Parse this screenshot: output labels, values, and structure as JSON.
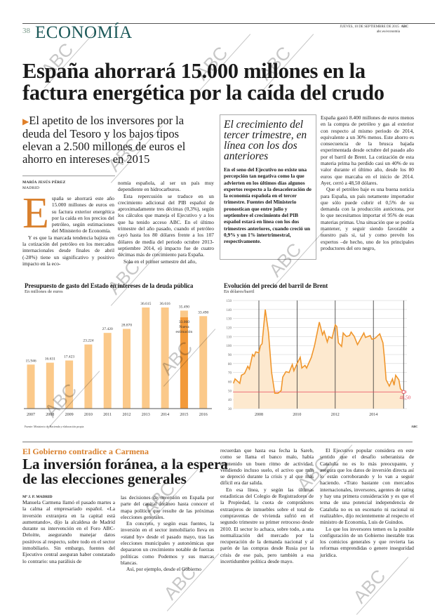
{
  "header": {
    "page_number": "38",
    "section": "ECONOMÍA",
    "date": "JUEVES, 10 DE SEPTIEMBRE DE 2015",
    "brand": "ABC",
    "url": "abc.es/economia"
  },
  "article": {
    "headline": "España ahorrará 15.000 millones en la factura energética por la caída del crudo",
    "subhead": "El apetito de los inversores por la deuda del Tesoro y los bajos tipos elevan a 2.500 millones de euros el ahorro en intereses en 2015",
    "author": "MARÍA JESÚS PÉREZ",
    "location": "MADRID",
    "dropcap": "E",
    "col1": [
      "spaña se ahorrará este año 15.000 millones de euros en su factura exterior energética por la caída en los precios del petróleo, según estimaciones del Ministerio de Economía.",
      "Y es que la marcada tendencia bajista en la cotización del petróleo en los mercados internacionales desde finales de abril (-28%) tiene un significativo y positivo impacto en la eco-"
    ],
    "col2": [
      "nomía española, al ser un país muy dependiente en hidrocarburos.",
      "Esta repercusión se traduce en un crecimiento adicional del PIB español de aproximadamente tres décimas (0,3%), según los cálculos que maneja el Ejecutivo y a los que ha tenido acceso ABC. En el último trimestre del año pasado, cuando el petróleo cayó hasta los 80 dólares frente a los 107 dólares de media del periodo octubre 2013-septiembre 2014, el impacto fue de cuatro décimas más de crecimiento para España.",
      "Solo en el primer semestre del año,"
    ],
    "box": {
      "title": "El crecimiento del tercer trimestre, en línea con los dos anteriores",
      "body": "En el seno del Ejecutivo no existe una percepción tan negativa como la que advierten en los últimos días algunos expertos respecto a la desaceleración de la economía española en el tercer trimestre. Fuentes del Ministerio pronostican que entre julio y septiembre el crecimiento del PIB español estará en línea con los dos trimestres anteriores, cuando creció un 0,9% y un 1% intertrimestral, respectivamente."
    },
    "col4": [
      "España gastó 8.400 millones de euros menos en la compra de petróleo y gas al exterior con respecto al mismo periodo de 2014, equivalente a un 30% menos. Este ahorro es consecuencia de la brusca bajada experimentada desde octubre del pasado año por el barril de Brent. La cotización de esta materia prima ha perdido casi un 40% de su valor durante el último año, desde los 80 euros que marcaba en el inicio de 2014. Ayer, cerró a 48,50 dólares.",
      "Que el petróleo baje es una buena noticia para España, un país netamente importador que sólo puede cubrir el 0,5% de su demanda con la producción autóctona, por lo que necesitamos importar el 95% de esas materias primas. Una situación que se podría mantener, y seguir siendo favorable a nuestro país si, tal y como prevén los expertos –de hecho, uno de los principales productores del oro negro,"
    ]
  },
  "chart_data": [
    {
      "type": "bar",
      "title": "Presupuesto de gasto del Estado en intereses de la deuda pública",
      "subtitle": "En millones de euros",
      "categories": [
        "2007",
        "2008",
        "2009",
        "2010",
        "2011",
        "2012",
        "2013",
        "2014",
        "2015",
        "2016"
      ],
      "values": [
        15946,
        16631,
        17423,
        23224,
        27420,
        28870,
        36615,
        36616,
        35490,
        33490
      ],
      "labels": [
        "15.946",
        "16.631",
        "17.423",
        "23.224",
        "27.420",
        "28.870",
        "36.615",
        "36.616",
        "35.490",
        "33.490"
      ],
      "overlay": {
        "category": "2015",
        "value": 33060,
        "label": "33.060",
        "note": "Nueva estimación"
      },
      "source": "Fuente: Ministerio de Hacienda y elaboración propia",
      "ylim": [
        0,
        40000
      ],
      "colors": {
        "bar": "#fbc98a",
        "overlay": "#f39a3a"
      }
    },
    {
      "type": "area",
      "title": "Evolución del precio del barril de Brent",
      "subtitle": "En dólares/barril",
      "yticks": [
        30,
        40,
        50,
        60,
        70,
        80,
        90,
        100,
        110,
        120,
        130,
        140,
        150
      ],
      "ylim": [
        30,
        150
      ],
      "xticks": [
        "2008",
        "2010",
        "2012",
        "2014"
      ],
      "grid": true,
      "colors": {
        "line": "#f0962c",
        "fill": "#fde9cf",
        "reference": "#e8475a"
      },
      "reference": {
        "value": 48.5,
        "label": "48,50"
      },
      "credit": "ABC",
      "points": [
        [
          "2006-09",
          58
        ],
        [
          "2006-10",
          63
        ],
        [
          "2007-01",
          58
        ],
        [
          "2007-02",
          67
        ],
        [
          "2007-04",
          69
        ],
        [
          "2007-06",
          77
        ],
        [
          "2007-07",
          74
        ],
        [
          "2007-09",
          90
        ],
        [
          "2007-10",
          88
        ],
        [
          "2007-11",
          93
        ],
        [
          "2008-01",
          92
        ],
        [
          "2008-02",
          100
        ],
        [
          "2008-03",
          102
        ],
        [
          "2008-05",
          140
        ],
        [
          "2008-07",
          115
        ],
        [
          "2008-09",
          70
        ],
        [
          "2008-11",
          47
        ],
        [
          "2009-01",
          47
        ],
        [
          "2009-03",
          50
        ],
        [
          "2009-04",
          65
        ],
        [
          "2009-06",
          71
        ],
        [
          "2009-08",
          70
        ],
        [
          "2009-10",
          79
        ],
        [
          "2009-11",
          72
        ],
        [
          "2010-01",
          80
        ],
        [
          "2010-03",
          87
        ],
        [
          "2010-04",
          75
        ],
        [
          "2010-06",
          78
        ],
        [
          "2010-07",
          75
        ],
        [
          "2010-09",
          83
        ],
        [
          "2010-10",
          87
        ],
        [
          "2010-12",
          100
        ],
        [
          "2011-03",
          126
        ],
        [
          "2011-05",
          112
        ],
        [
          "2011-06",
          116
        ],
        [
          "2011-08",
          104
        ],
        [
          "2011-09",
          110
        ],
        [
          "2011-11",
          108
        ],
        [
          "2012-01",
          123
        ],
        [
          "2012-02",
          121
        ],
        [
          "2012-03",
          103
        ],
        [
          "2012-05",
          99
        ],
        [
          "2012-06",
          114
        ],
        [
          "2012-08",
          110
        ],
        [
          "2012-10",
          111
        ],
        [
          "2012-11",
          115
        ],
        [
          "2013-01",
          110
        ],
        [
          "2013-03",
          101
        ],
        [
          "2013-07",
          114
        ],
        [
          "2013-08",
          109
        ],
        [
          "2013-11",
          111
        ],
        [
          "2013-12",
          107
        ],
        [
          "2014-02",
          108
        ],
        [
          "2014-05",
          113
        ],
        [
          "2014-07",
          103
        ],
        [
          "2014-08",
          85
        ],
        [
          "2014-09",
          62
        ],
        [
          "2014-11",
          55
        ],
        [
          "2015-01",
          63
        ],
        [
          "2015-02",
          56
        ],
        [
          "2015-03",
          67
        ],
        [
          "2015-05",
          62
        ],
        [
          "2015-06",
          52
        ],
        [
          "2015-08",
          48.5
        ]
      ]
    }
  ],
  "article2": {
    "kicker": "El Gobierno contradice a Carmena",
    "headline": "La inversión foránea, a la espera de las elecciones generales",
    "byline": "Mª J. P. MADRID",
    "col1": [
      "Manuela Carmena llamó el pasado martes a la calma al empresariado español. «La inversión extranjera en la capital está aumentando», dijo la alcaldesa de Madrid durante su intervención en el Foro ABC-Deloitte, asegurando manejar datos positivos al respecto, sobre todo en el sector inmobiliario. Sin embargo, fuentes del Ejecutivo central aseguran haber constatado lo contrario: una parálisis de"
    ],
    "col2": [
      "las decisiones de inversión en España por parte del capital foráneo hasta conocer el mapa político que resulte de las próximas elecciones generales.",
      "En concreto, y según esas fuentes, la inversión en el sector inmobiliario lleva en «stand by» desde el pasado mayo, tras las elecciones municipales y autonómicas que depararon un crecimiento notable de fuerzas políticas como Podemos y sus marcas blancas.",
      "Así, por ejemplo, desde el Gobierno"
    ],
    "col3": [
      "recuerdan que hasta esa fecha la Sareb, como se llama el banco malo, había mantenido un buen ritmo de actividad, vendiendo incluso suelo, el activo que más se depreció durante la crisis y al que más difícil era dar salida.",
      "En esa línea, y según las últimas estadísticas del Colegio de Registradores de la Propiedad, la cuota de compradores extranjeros de inmuebles sobre el total de compraventas de vivienda sufrió en el segundo trimestre su primer retroceso desde 2010. El sector lo achaca, sobre todo, a una normalización del mercado por la recuperación de la demanda nacional y al parón de las compras desde Rusia por la crisis de ese país, pero también a esa incertidumbre política desde mayo."
    ],
    "col4": [
      "El Ejecutivo popular considera en este sentido que el desafío soberanista de Cataluña no es lo más preocupante, y asegura que los datos de inversión directa así lo están corroborando y lo van a seguir haciendo. «Trato bastante con mercados internacionales, inversores, agentes de rating y hay una primera consideración y es que el tema de una potencial independencia de Cataluña no es un escenario ni racional ni realizable», dijo recientemente al respecto el ministro de Economía, Luis de Guindos.",
      "Lo que los inversores temen es la posible configuración de un Gobierno inestable tras los comicios generales y que revierta las reformas emprendidas o genere inseguridad jurídica."
    ]
  },
  "watermark": "ABC"
}
